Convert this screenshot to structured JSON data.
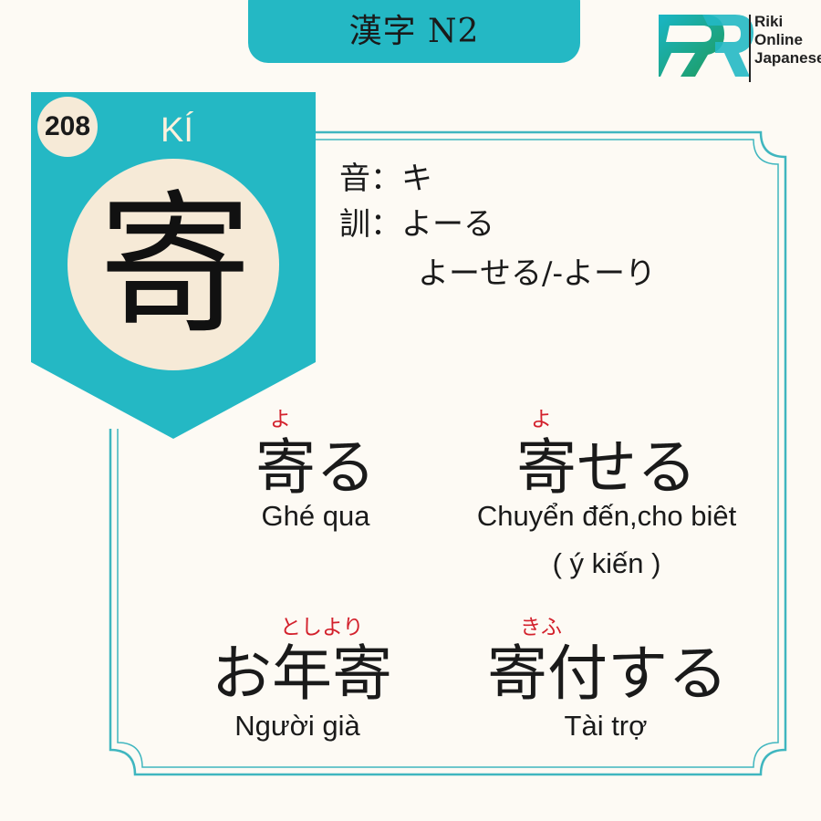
{
  "header": {
    "title": "漢字 N2"
  },
  "logo": {
    "line1": "Riki",
    "line2": "Online",
    "line3": "Japanese"
  },
  "kanji": {
    "number": "208",
    "reading": "KÍ",
    "character": "寄"
  },
  "readings": {
    "on_label": "音",
    "on_value": "：キ",
    "kun_label": "訓",
    "kun_value": "：よーる",
    "kun_value_2": "よーせる/-よーり"
  },
  "vocab": [
    {
      "furigana": "よ",
      "word": "寄る",
      "meaning": "Ghé qua"
    },
    {
      "furigana": "よ",
      "word": "寄せる",
      "meaning": "Chuyển đến,cho biêt",
      "meaning_2": "( ý kiến )"
    },
    {
      "furigana": "としより",
      "word": "お年寄",
      "meaning": "Người già"
    },
    {
      "furigana": "きふ",
      "word": "寄付する",
      "meaning": "Tài trợ"
    }
  ],
  "colors": {
    "teal": "#24b8c4",
    "frame": "#3fb6bf",
    "cream": "#f6ead7",
    "furigana": "#d3212c",
    "background": "#fdfaf4"
  }
}
